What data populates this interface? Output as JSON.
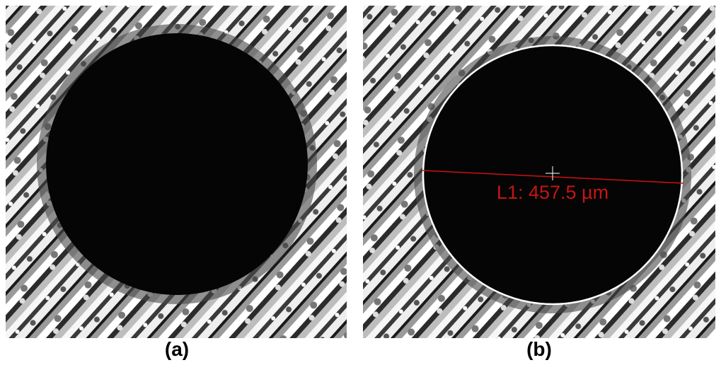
{
  "panels": [
    {
      "caption": "(a)"
    },
    {
      "caption": "(b)",
      "measurement": {
        "label": "L1: 457.5 µm"
      }
    }
  ]
}
